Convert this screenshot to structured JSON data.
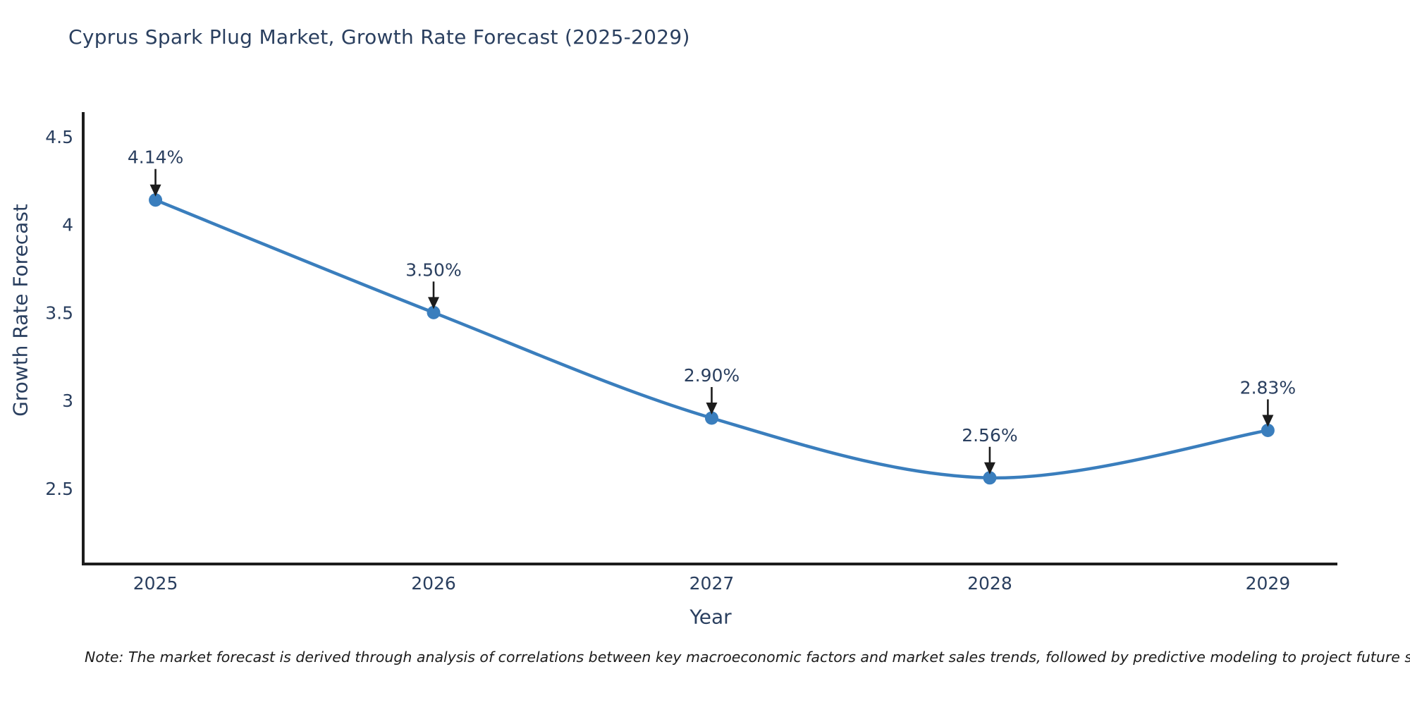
{
  "figure": {
    "note": "Note: The market forecast is derived through analysis of correlations between key macroeconomic factors and market sales trends, followed by predictive modeling to project future sales"
  },
  "chart_data": {
    "type": "line",
    "title": "Cyprus Spark Plug Market, Growth Rate Forecast (2025-2029)",
    "xlabel": "Year",
    "ylabel": "Growth Rate Forecast",
    "x": [
      2025,
      2026,
      2027,
      2028,
      2029
    ],
    "x_tick_labels": [
      "2025",
      "2026",
      "2027",
      "2028",
      "2029"
    ],
    "series": [
      {
        "name": "Growth Rate Forecast",
        "values": [
          4.14,
          3.5,
          2.9,
          2.56,
          2.83
        ],
        "point_labels": [
          "4.14%",
          "3.50%",
          "2.90%",
          "2.56%",
          "2.83%"
        ]
      }
    ],
    "y_ticks": [
      2.5,
      3,
      3.5,
      4,
      4.5
    ],
    "y_tick_labels": [
      "2.5",
      "3",
      "3.5",
      "4",
      "4.5"
    ],
    "xlim": [
      2024.74,
      2029.25
    ],
    "ylim": [
      2.07,
      4.64
    ],
    "grid": false,
    "legend": "none",
    "line_shape": "spline",
    "annotations": "value labels with black down-arrows above each point",
    "colors": {
      "line": "#3a7ebd",
      "marker": "#3a7ebd",
      "axis": "#1c1c1c",
      "arrow": "#1c1c1c",
      "text": "#2a3f5f"
    }
  }
}
